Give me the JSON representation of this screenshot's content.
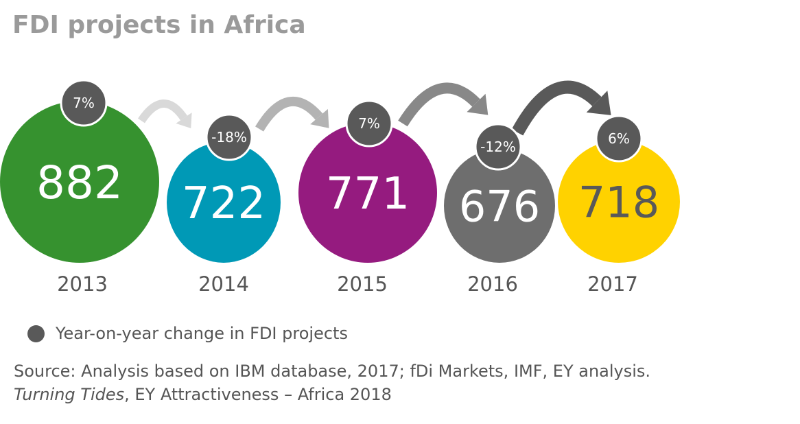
{
  "title": "FDI projects in Africa",
  "chart_data": {
    "type": "bubble",
    "title": "FDI projects in Africa",
    "categories": [
      "2013",
      "2014",
      "2015",
      "2016",
      "2017"
    ],
    "values": [
      882,
      722,
      771,
      676,
      718
    ],
    "value_labels": [
      "882",
      "722",
      "771",
      "676",
      "718"
    ],
    "yoy_change_labels": [
      "7%",
      "-18%",
      "7%",
      "-12%",
      "6%"
    ],
    "yoy_change": [
      7,
      -18,
      7,
      -12,
      6
    ],
    "colors": [
      "#36922f",
      "#0099b6",
      "#951b7f",
      "#6e6e6e",
      "#ffd200"
    ],
    "value_text_colors": [
      "#ffffff",
      "#ffffff",
      "#ffffff",
      "#ffffff",
      "#595959"
    ],
    "badge_color": "#595959",
    "arrow_colors": [
      "#d9d9d9",
      "#b3b3b3",
      "#888888",
      "#595959"
    ],
    "legend": [
      "Year-on-year change in FDI projects"
    ]
  },
  "source": {
    "line1": "Source: Analysis based on IBM database, 2017; fDi Markets, IMF, EY analysis.",
    "line2_italic": "Turning Tides",
    "line2_rest": ", EY Attractiveness – Africa 2018"
  }
}
